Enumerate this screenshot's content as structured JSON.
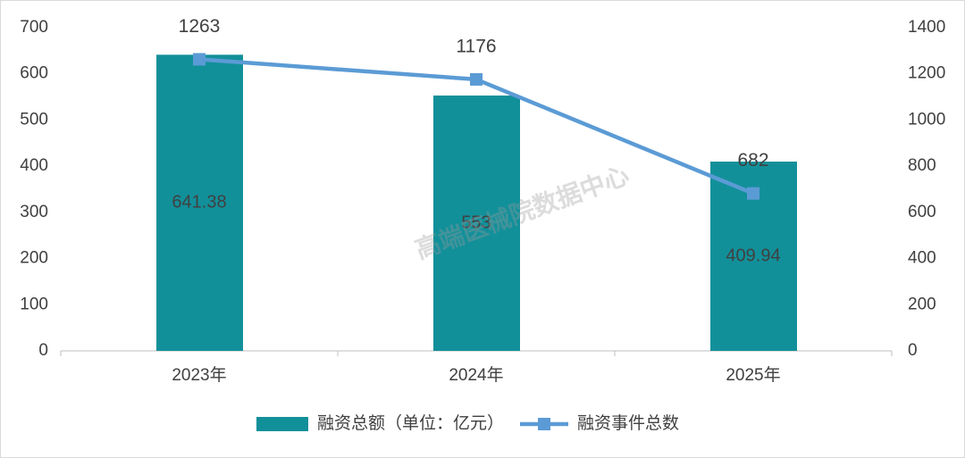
{
  "chart_data": {
    "type": "combo",
    "categories": [
      "2023年",
      "2024年",
      "2025年"
    ],
    "series": [
      {
        "name": "融资总额（单位：亿元）",
        "type": "bar",
        "color": "#12909a",
        "values": [
          641.38,
          553,
          409.94
        ]
      },
      {
        "name": "融资事件总数",
        "type": "line",
        "axis": "y2",
        "color": "#5b9bd5",
        "values": [
          1263,
          1176,
          682
        ]
      }
    ],
    "ylim": [
      0,
      700
    ],
    "yticks": [
      0,
      100,
      200,
      300,
      400,
      500,
      600,
      700
    ],
    "y2lim": [
      0,
      1400
    ],
    "y2ticks": [
      0,
      200,
      400,
      600,
      800,
      1000,
      1200,
      1400
    ],
    "legend": "bottom",
    "watermark": "高端医械院数据中心"
  }
}
